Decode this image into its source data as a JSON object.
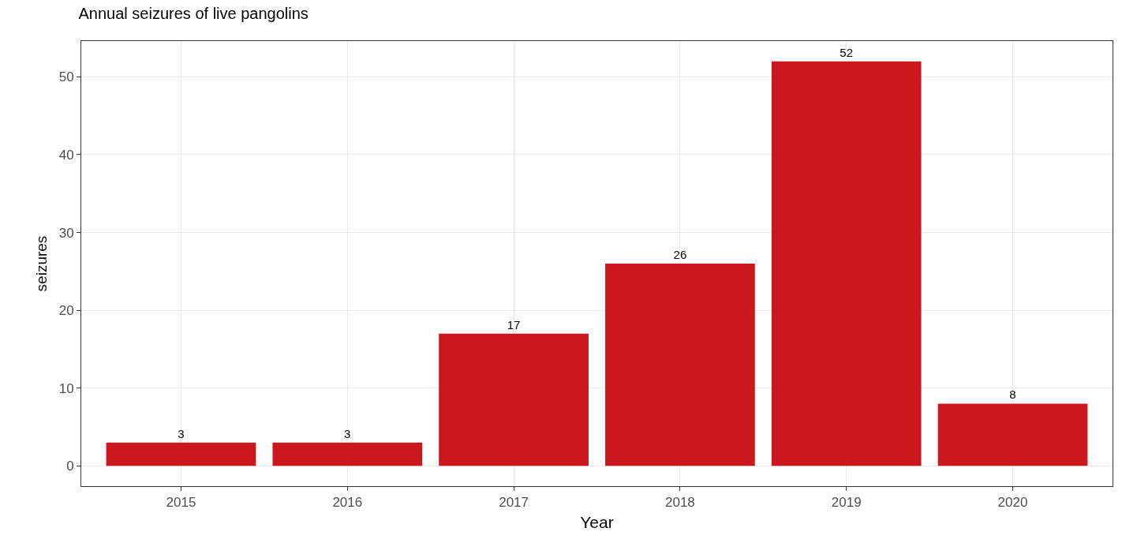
{
  "chart_data": {
    "type": "bar",
    "title": "Annual seizures of live pangolins",
    "xlabel": "Year",
    "ylabel": "seizures",
    "categories": [
      "2015",
      "2016",
      "2017",
      "2018",
      "2019",
      "2020"
    ],
    "values": [
      3,
      3,
      17,
      26,
      52,
      8
    ],
    "color": "#cb181d",
    "ylim": [
      -2.6,
      54.6
    ],
    "yticks": [
      0,
      10,
      20,
      30,
      40,
      50
    ],
    "grid": true,
    "data_labels": true,
    "legend": false
  }
}
